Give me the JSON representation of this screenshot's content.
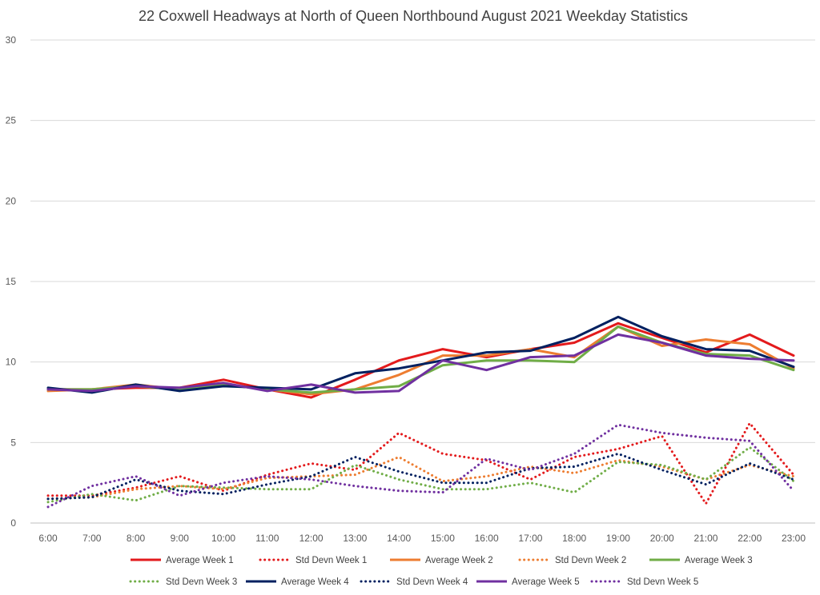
{
  "chart_data": {
    "type": "line",
    "title": "22 Coxwell Headways at North of Queen Northbound August 2021 Weekday Statistics",
    "xlabel": "",
    "ylabel": "",
    "ylim": [
      0,
      30
    ],
    "yticks": [
      "0",
      "5",
      "10",
      "15",
      "20",
      "25",
      "30"
    ],
    "grid": true,
    "legend_position": "bottom",
    "categories": [
      "6:00",
      "7:00",
      "8:00",
      "9:00",
      "10:00",
      "11:00",
      "12:00",
      "13:00",
      "14:00",
      "15:00",
      "16:00",
      "17:00",
      "18:00",
      "19:00",
      "20:00",
      "21:00",
      "22:00",
      "23:00"
    ],
    "series": [
      {
        "name": "Average Week 1",
        "color": "#e31a1c",
        "style": "solid",
        "values": [
          8.3,
          8.3,
          8.4,
          8.4,
          8.9,
          8.3,
          7.8,
          8.9,
          10.1,
          10.8,
          10.3,
          10.8,
          11.2,
          12.4,
          11.5,
          10.6,
          11.7,
          10.4
        ]
      },
      {
        "name": "Std Devn Week 1",
        "color": "#e31a1c",
        "style": "dotted",
        "values": [
          1.7,
          1.7,
          2.2,
          2.9,
          2.0,
          3.0,
          3.7,
          3.3,
          5.6,
          4.3,
          3.9,
          2.7,
          4.1,
          4.6,
          5.4,
          1.2,
          6.2,
          3.0
        ]
      },
      {
        "name": "Average Week 2",
        "color": "#ed7d31",
        "style": "solid",
        "values": [
          8.2,
          8.3,
          8.6,
          8.3,
          8.6,
          8.3,
          8.0,
          8.3,
          9.2,
          10.4,
          10.4,
          10.8,
          10.3,
          12.2,
          11.0,
          11.4,
          11.1,
          9.6
        ]
      },
      {
        "name": "Std Devn Week 2",
        "color": "#ed7d31",
        "style": "dotted",
        "values": [
          1.5,
          1.6,
          2.1,
          2.3,
          2.1,
          2.8,
          2.9,
          3.0,
          4.1,
          2.6,
          2.9,
          3.5,
          3.1,
          3.9,
          3.5,
          2.7,
          3.6,
          2.9
        ]
      },
      {
        "name": "Average Week 3",
        "color": "#70ad47",
        "style": "solid",
        "values": [
          8.3,
          8.3,
          8.5,
          8.3,
          8.6,
          8.3,
          8.1,
          8.3,
          8.5,
          9.8,
          10.1,
          10.1,
          10.0,
          12.2,
          11.2,
          10.5,
          10.4,
          9.5
        ]
      },
      {
        "name": "Std Devn Week 3",
        "color": "#70ad47",
        "style": "dotted",
        "values": [
          1.3,
          1.8,
          1.4,
          2.3,
          2.2,
          2.1,
          2.1,
          3.6,
          2.7,
          2.1,
          2.1,
          2.5,
          1.9,
          3.8,
          3.6,
          2.7,
          4.7,
          2.6
        ]
      },
      {
        "name": "Average Week 4",
        "color": "#002060",
        "style": "solid",
        "values": [
          8.4,
          8.1,
          8.6,
          8.2,
          8.5,
          8.4,
          8.3,
          9.3,
          9.6,
          10.1,
          10.6,
          10.7,
          11.5,
          12.8,
          11.6,
          10.8,
          10.7,
          9.7
        ]
      },
      {
        "name": "Std Devn Week 4",
        "color": "#002060",
        "style": "dotted",
        "values": [
          1.5,
          1.6,
          2.7,
          2.0,
          1.8,
          2.4,
          2.9,
          4.1,
          3.2,
          2.5,
          2.5,
          3.4,
          3.5,
          4.3,
          3.3,
          2.4,
          3.7,
          2.7
        ]
      },
      {
        "name": "Average Week 5",
        "color": "#7030a0",
        "style": "solid",
        "values": [
          8.3,
          8.2,
          8.5,
          8.4,
          8.7,
          8.2,
          8.6,
          8.1,
          8.2,
          10.1,
          9.5,
          10.3,
          10.4,
          11.7,
          11.2,
          10.4,
          10.2,
          10.1
        ]
      },
      {
        "name": "Std Devn Week 5",
        "color": "#7030a0",
        "style": "dotted",
        "values": [
          1.0,
          2.3,
          2.9,
          1.7,
          2.5,
          2.9,
          2.7,
          2.3,
          2.0,
          1.9,
          4.0,
          3.3,
          4.3,
          6.1,
          5.6,
          5.3,
          5.1,
          2.0
        ]
      }
    ]
  }
}
